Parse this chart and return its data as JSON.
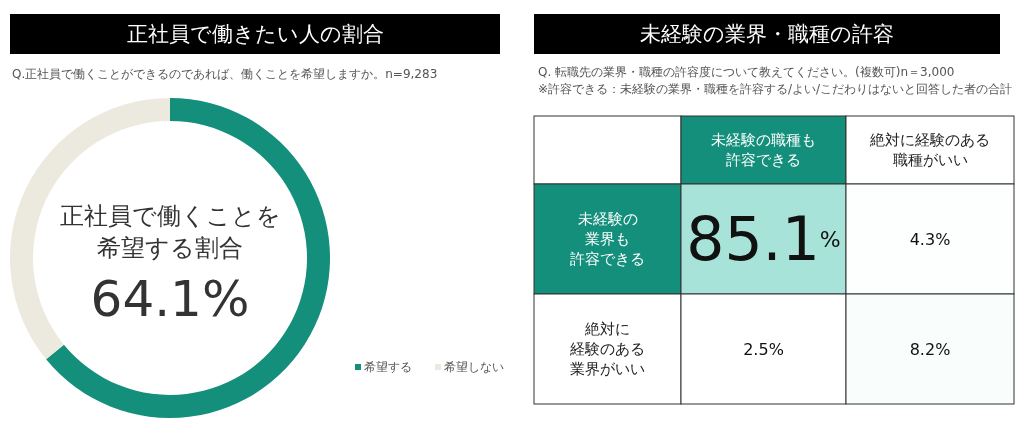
{
  "chart_data": [
    {
      "type": "donut",
      "title": "正社員で働きたい人の割合",
      "subtitle": "Q.正社員で働くことができるのであれば、働くことを希望しますか。n=9,283",
      "categories": [
        "希望する",
        "希望しない"
      ],
      "values": [
        64.1,
        35.9
      ],
      "colors": [
        "#148f7b",
        "#ece9df"
      ],
      "legend": "bottom right",
      "annotations": [
        "正社員で働くことを",
        "希望する割合",
        "64.1%"
      ]
    },
    {
      "type": "heatmap",
      "title": "未経験の業界・職種の許容",
      "subtitle": "Q. 転職先の業界・職種の許容度について教えてください。(複数可)n＝3,000",
      "annotations": [
        "※許容できる：未経験の業界・職種を許容する/よい/こだわりはないと回答した者の合計"
      ],
      "categories": [
        "未経験の職種も許容できる",
        "絶対に経験のある職種がいい"
      ],
      "y_categories": [
        "未経験の業界も許容できる",
        "絶対に経験のある業界がいい"
      ],
      "cells": [
        [
          85.1,
          4.3
        ],
        [
          2.5,
          8.2
        ]
      ],
      "cell_labels": [
        [
          "85.1%",
          "4.3%"
        ],
        [
          "2.5%",
          "8.2%"
        ]
      ]
    }
  ]
}
